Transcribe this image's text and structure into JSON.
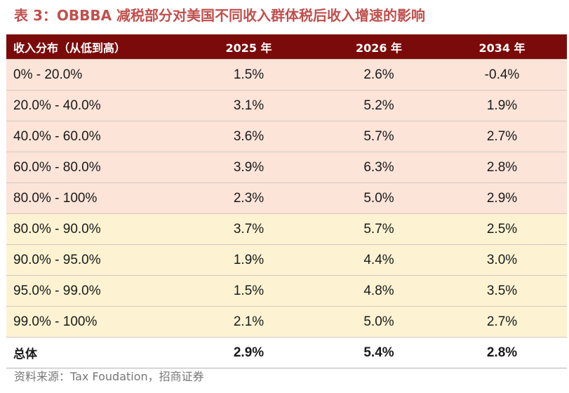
{
  "title": "表 3：OBBBA 减税部分对美国不同收入群体税后收入增速的影响",
  "table": {
    "headers": [
      "收入分布（从低到高）",
      "2025 年",
      "2026 年",
      "2034 年"
    ],
    "rows": [
      {
        "band": "0% - 20.0%",
        "y2025": "1.5%",
        "y2026": "2.6%",
        "y2034": "-0.4%"
      },
      {
        "band": "20.0% - 40.0%",
        "y2025": "3.1%",
        "y2026": "5.2%",
        "y2034": "1.9%"
      },
      {
        "band": "40.0% - 60.0%",
        "y2025": "3.6%",
        "y2026": "5.7%",
        "y2034": "2.7%"
      },
      {
        "band": "60.0% - 80.0%",
        "y2025": "3.9%",
        "y2026": "6.3%",
        "y2034": "2.8%"
      },
      {
        "band": "80.0% - 100%",
        "y2025": "2.3%",
        "y2026": "5.0%",
        "y2034": "2.9%"
      },
      {
        "band": "80.0% - 90.0%",
        "y2025": "3.7%",
        "y2026": "5.7%",
        "y2034": "2.5%"
      },
      {
        "band": "90.0% - 95.0%",
        "y2025": "1.9%",
        "y2026": "4.4%",
        "y2034": "3.0%"
      },
      {
        "band": "95.0% - 99.0%",
        "y2025": "1.5%",
        "y2026": "4.8%",
        "y2034": "3.5%"
      },
      {
        "band": "99.0% - 100%",
        "y2025": "2.1%",
        "y2026": "5.0%",
        "y2034": "2.7%"
      }
    ],
    "total": {
      "band": "总体",
      "y2025": "2.9%",
      "y2026": "5.4%",
      "y2034": "2.8%"
    }
  },
  "source": "资料来源：Tax Foudation，招商证券",
  "colors": {
    "title": "#c0504d",
    "header_bg": "#7b0b0b",
    "quintile_row_bg": "#fce4d8",
    "top_band_row_bg": "#fdf3d2"
  }
}
